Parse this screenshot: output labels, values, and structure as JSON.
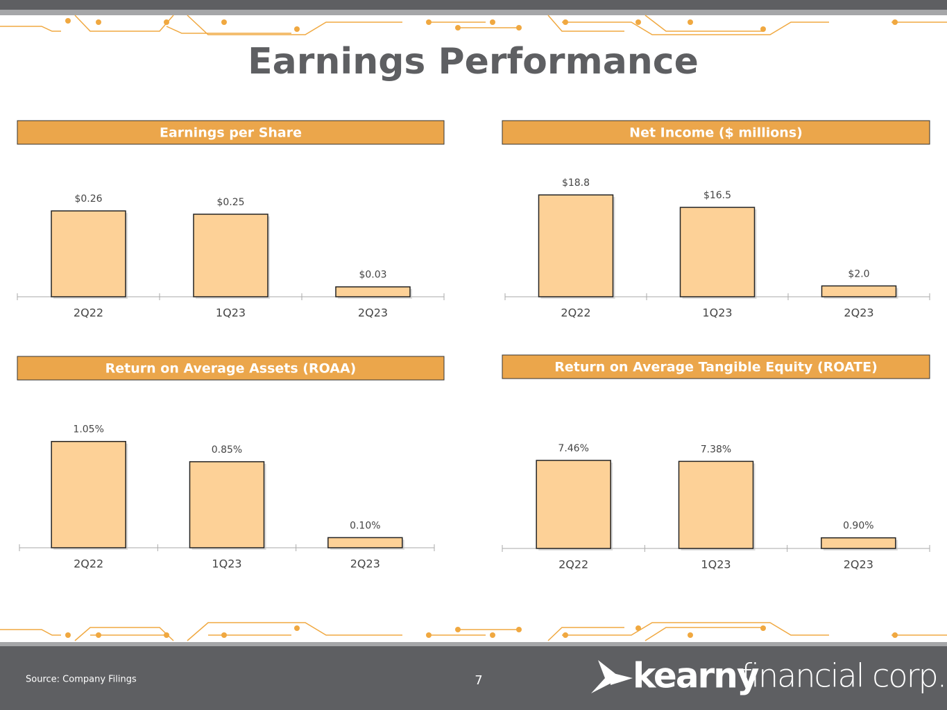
{
  "title": "Earnings Performance",
  "chart_data": [
    {
      "type": "bar",
      "title": "Earnings per Share",
      "categories": [
        "2Q22",
        "1Q23",
        "2Q23"
      ],
      "values": [
        0.26,
        0.25,
        0.03
      ],
      "value_labels": [
        "$0.26",
        "$0.25",
        "$0.03"
      ],
      "color": "#fdd197",
      "ylim": [
        0,
        0.42
      ]
    },
    {
      "type": "bar",
      "title": "Net Income ($ millions)",
      "categories": [
        "2Q22",
        "1Q23",
        "2Q23"
      ],
      "values": [
        18.8,
        16.5,
        2.0
      ],
      "value_labels": [
        "$18.8",
        "$16.5",
        "$2.0"
      ],
      "color": "#fdd197",
      "ylim": [
        0,
        25.6
      ]
    },
    {
      "type": "bar",
      "title": "Return on Average Assets (ROAA)",
      "categories": [
        "2Q22",
        "1Q23",
        "2Q23"
      ],
      "values": [
        1.05,
        0.85,
        0.1
      ],
      "value_labels": [
        "1.05%",
        "0.85%",
        "0.10%"
      ],
      "color": "#fdd197",
      "ylim": [
        0,
        1.37
      ]
    },
    {
      "type": "bar",
      "title": "Return on Average Tangible Equity (ROATE)",
      "categories": [
        "2Q22",
        "1Q23",
        "2Q23"
      ],
      "values": [
        7.46,
        7.38,
        0.9
      ],
      "value_labels": [
        "7.46%",
        "7.38%",
        "0.90%"
      ],
      "color": "#fdd197",
      "ylim": [
        0,
        11.75
      ]
    }
  ],
  "footer": {
    "source": "Source: Company Filings",
    "page": "7",
    "logo_bold": "kearny",
    "logo_light": "financial corp."
  }
}
